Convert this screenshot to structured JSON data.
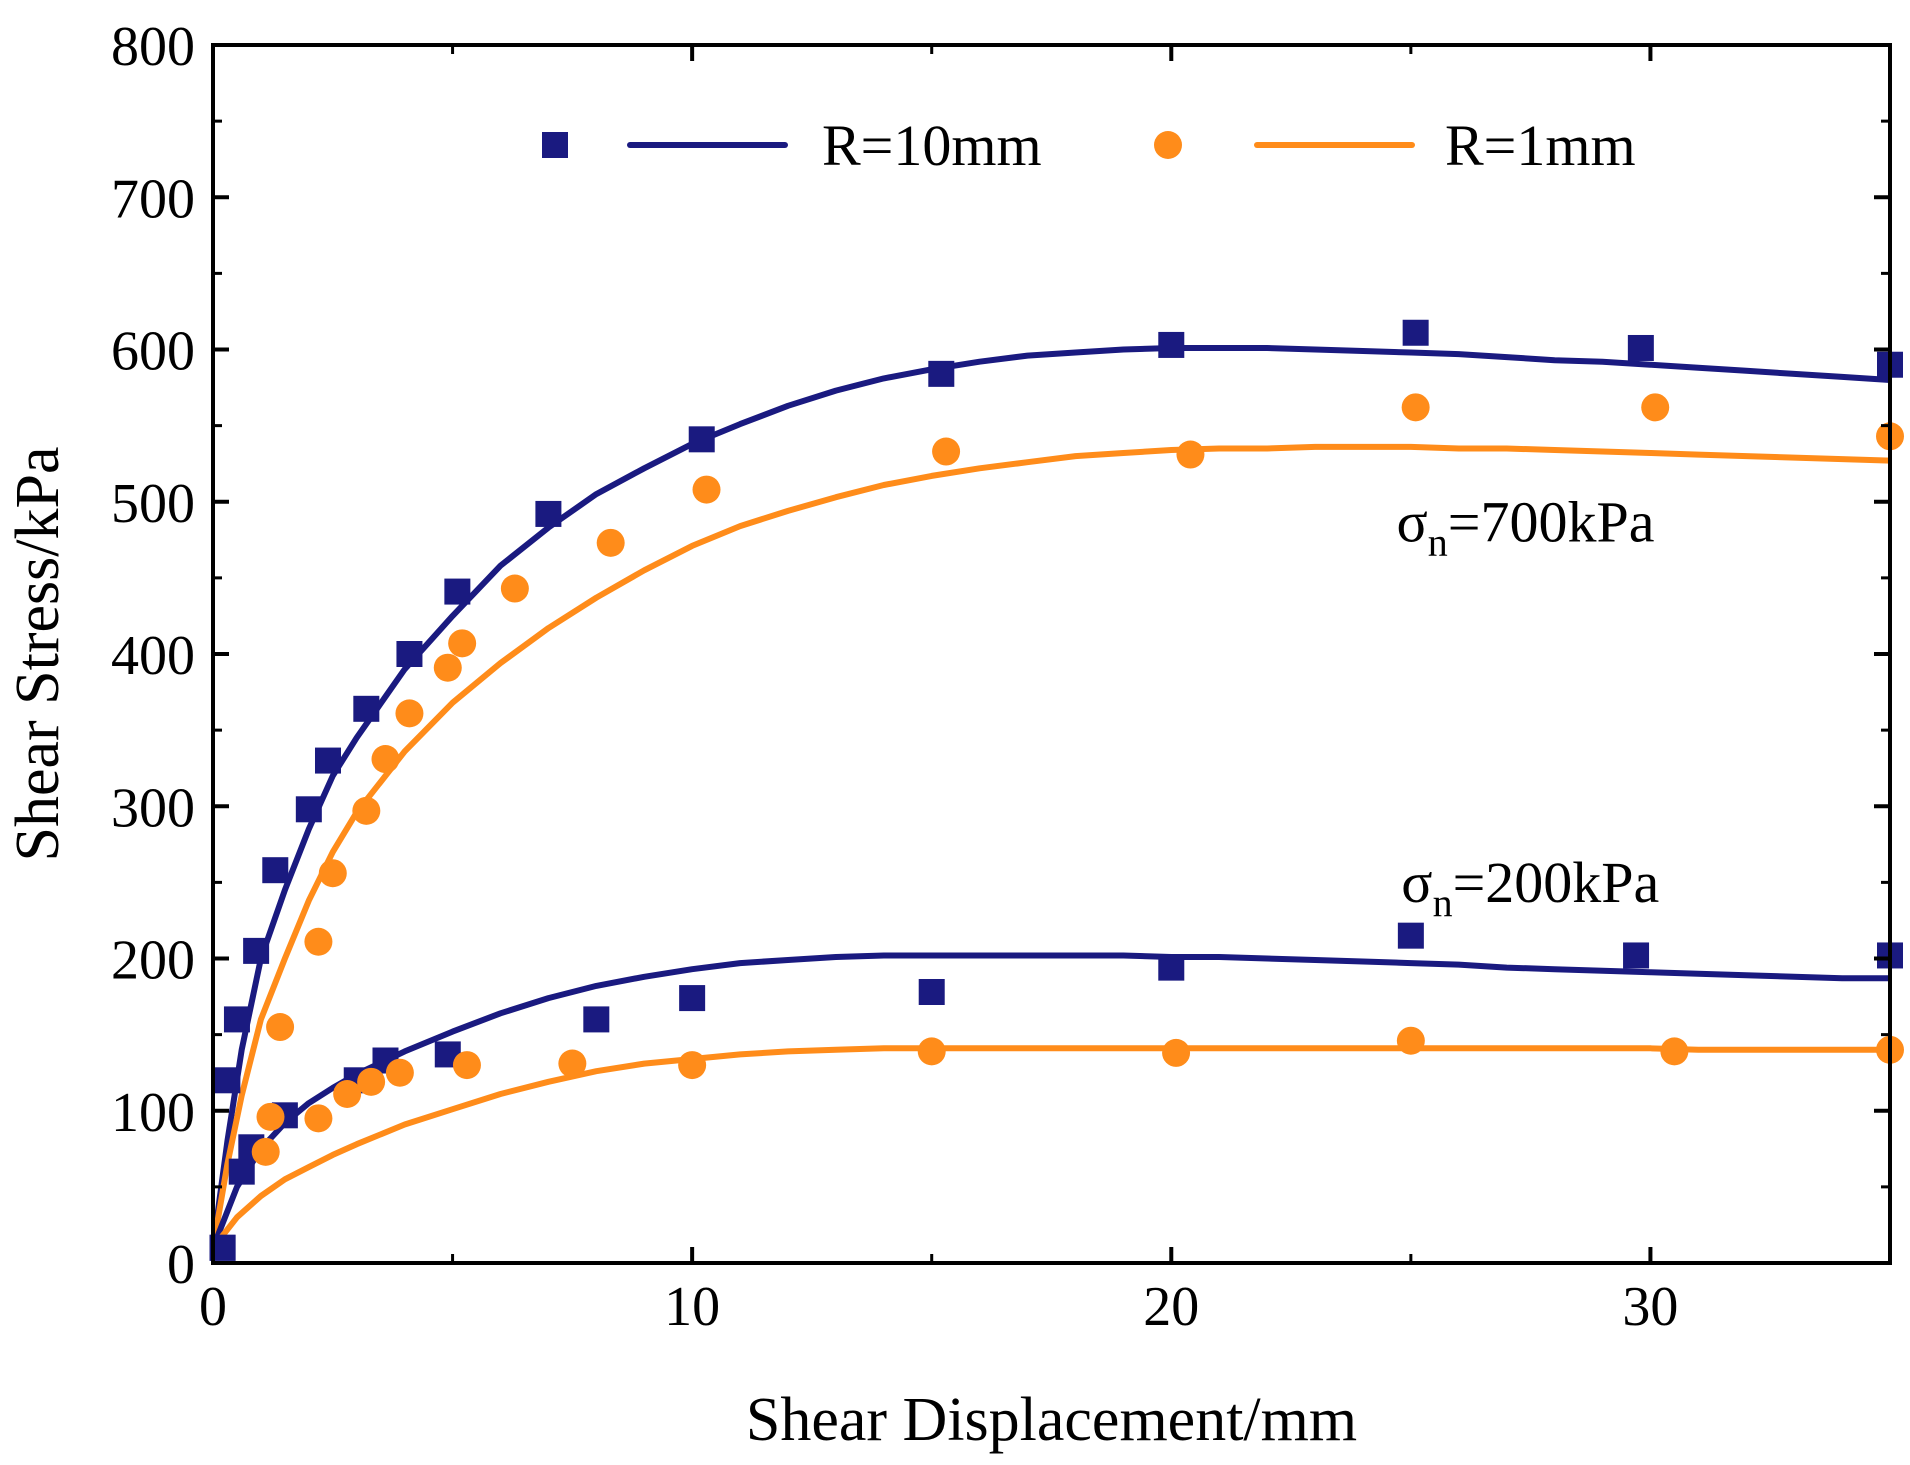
{
  "chart_data": {
    "type": "scatter",
    "xlabel": "Shear Displacement/mm",
    "ylabel": "Shear Stress/kPa",
    "xlim": [
      0,
      35
    ],
    "ylim": [
      0,
      800
    ],
    "xticks": [
      "0",
      "10",
      "20",
      "30"
    ],
    "yticks": [
      "0",
      "100",
      "200",
      "300",
      "400",
      "500",
      "600",
      "700",
      "800"
    ],
    "grid": false,
    "legend_position": "top",
    "legend": [
      {
        "label": "R=10mm",
        "color": "#1a1a80",
        "marker": "square"
      },
      {
        "label": "R=1mm",
        "color": "#ff8c1a",
        "marker": "circle"
      }
    ],
    "annotations": [
      {
        "symbol": "σ",
        "sub": "n",
        "text": "=700kPa",
        "x": 24.7,
        "y": 474
      },
      {
        "symbol": "σ",
        "sub": "n",
        "text": "=200kPa",
        "x": 24.8,
        "y": 237
      }
    ],
    "series": [
      {
        "name": "R=10mm",
        "normal_stress": "700kPa",
        "color": "#1a1a80",
        "marker": "square",
        "points": [
          [
            0.2,
            10
          ],
          [
            0.3,
            120
          ],
          [
            0.5,
            160
          ],
          [
            0.9,
            205
          ],
          [
            1.3,
            258
          ],
          [
            2.0,
            298
          ],
          [
            2.4,
            330
          ],
          [
            3.2,
            364
          ],
          [
            4.1,
            400
          ],
          [
            5.1,
            441
          ],
          [
            7.0,
            492
          ],
          [
            10.2,
            541
          ],
          [
            15.2,
            584
          ],
          [
            20.0,
            603
          ],
          [
            25.1,
            611
          ],
          [
            29.8,
            601
          ],
          [
            35.0,
            590
          ]
        ],
        "fit_x": [
          0,
          0.3,
          0.6,
          1,
          1.5,
          2,
          2.5,
          3,
          4,
          5,
          6,
          7,
          8,
          9,
          10,
          11,
          12,
          13,
          14,
          15,
          16,
          17,
          18,
          19,
          20,
          21,
          22,
          23,
          24,
          25,
          26,
          27,
          28,
          29,
          30,
          31,
          32,
          33,
          34,
          35
        ],
        "fit_y": [
          10,
          80,
          140,
          200,
          245,
          285,
          320,
          345,
          390,
          425,
          458,
          483,
          505,
          522,
          538,
          551,
          563,
          573,
          581,
          587,
          592,
          596,
          598,
          600,
          601,
          601,
          601,
          600,
          599,
          598,
          597,
          595,
          593,
          592,
          590,
          588,
          586,
          584,
          582,
          580
        ]
      },
      {
        "name": "R=1mm",
        "normal_stress": "700kPa",
        "color": "#ff8c1a",
        "marker": "circle",
        "points": [
          [
            1.4,
            155
          ],
          [
            2.2,
            211
          ],
          [
            2.5,
            256
          ],
          [
            3.2,
            297
          ],
          [
            3.6,
            331
          ],
          [
            4.1,
            361
          ],
          [
            4.9,
            391
          ],
          [
            5.2,
            407
          ],
          [
            6.3,
            443
          ],
          [
            8.3,
            473
          ],
          [
            10.3,
            508
          ],
          [
            15.3,
            533
          ],
          [
            20.4,
            531
          ],
          [
            25.1,
            562
          ],
          [
            30.1,
            562
          ],
          [
            35.0,
            543
          ]
        ],
        "fit_x": [
          0,
          0.3,
          0.6,
          1,
          1.5,
          2,
          2.5,
          3,
          4,
          5,
          6,
          7,
          8,
          9,
          10,
          11,
          12,
          13,
          14,
          15,
          16,
          17,
          18,
          19,
          20,
          21,
          22,
          23,
          24,
          25,
          26,
          27,
          28,
          29,
          30,
          31,
          32,
          33,
          34,
          35
        ],
        "fit_y": [
          10,
          65,
          110,
          160,
          200,
          238,
          270,
          296,
          336,
          368,
          394,
          417,
          437,
          455,
          471,
          484,
          494,
          503,
          511,
          517,
          522,
          526,
          530,
          532,
          534,
          535,
          535,
          536,
          536,
          536,
          535,
          535,
          534,
          533,
          532,
          531,
          530,
          529,
          528,
          527
        ]
      },
      {
        "name": "R=10mm",
        "normal_stress": "200kPa",
        "color": "#1a1a80",
        "marker": "square",
        "points": [
          [
            0.2,
            10
          ],
          [
            0.6,
            60
          ],
          [
            0.8,
            76
          ],
          [
            1.5,
            97
          ],
          [
            3.0,
            120
          ],
          [
            3.6,
            133
          ],
          [
            4.9,
            137
          ],
          [
            8.0,
            160
          ],
          [
            10.0,
            174
          ],
          [
            15.0,
            178
          ],
          [
            20.0,
            194
          ],
          [
            25.0,
            215
          ],
          [
            29.7,
            202
          ],
          [
            35.0,
            202
          ]
        ],
        "fit_x": [
          0,
          0.5,
          1,
          1.5,
          2,
          2.5,
          3,
          4,
          5,
          6,
          7,
          8,
          9,
          10,
          11,
          12,
          13,
          14,
          15,
          16,
          17,
          18,
          19,
          20,
          21,
          22,
          23,
          24,
          25,
          26,
          27,
          28,
          29,
          30,
          31,
          32,
          33,
          34,
          35
        ],
        "fit_y": [
          10,
          50,
          75,
          92,
          105,
          115,
          124,
          139,
          152,
          164,
          174,
          182,
          188,
          193,
          197,
          199,
          201,
          202,
          202,
          202,
          202,
          202,
          202,
          201,
          201,
          200,
          199,
          198,
          197,
          196,
          194,
          193,
          192,
          191,
          190,
          189,
          188,
          187,
          187
        ]
      },
      {
        "name": "R=1mm",
        "normal_stress": "200kPa",
        "color": "#ff8c1a",
        "marker": "circle",
        "points": [
          [
            1.1,
            73
          ],
          [
            1.2,
            96
          ],
          [
            2.2,
            95
          ],
          [
            2.8,
            111
          ],
          [
            3.3,
            119
          ],
          [
            3.9,
            125
          ],
          [
            5.3,
            130
          ],
          [
            7.5,
            131
          ],
          [
            10.0,
            130
          ],
          [
            15.0,
            139
          ],
          [
            20.1,
            138
          ],
          [
            25.0,
            146
          ],
          [
            30.5,
            139
          ],
          [
            35.0,
            140
          ]
        ],
        "fit_x": [
          0,
          0.5,
          1,
          1.5,
          2,
          2.5,
          3,
          4,
          5,
          6,
          7,
          8,
          9,
          10,
          11,
          12,
          13,
          14,
          15,
          16,
          17,
          18,
          19,
          20,
          21,
          22,
          23,
          24,
          25,
          26,
          27,
          28,
          29,
          30,
          31,
          32,
          33,
          34,
          35
        ],
        "fit_y": [
          10,
          30,
          44,
          55,
          63,
          71,
          78,
          91,
          101,
          111,
          119,
          126,
          131,
          134,
          137,
          139,
          140,
          141,
          141,
          141,
          141,
          141,
          141,
          141,
          141,
          141,
          141,
          141,
          141,
          141,
          141,
          141,
          141,
          141,
          140,
          140,
          140,
          140,
          140
        ]
      }
    ]
  }
}
